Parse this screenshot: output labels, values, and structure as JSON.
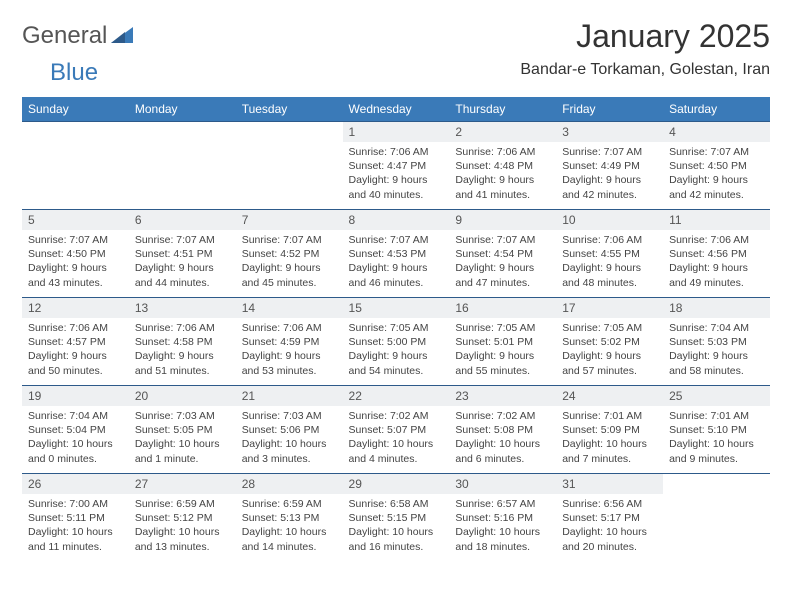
{
  "brand": {
    "general": "General",
    "blue": "Blue"
  },
  "title": "January 2025",
  "location": "Bandar-e Torkaman, Golestan, Iran",
  "colors": {
    "header_bg": "#3a7ab8",
    "header_text": "#ffffff",
    "daynum_bg": "#eef0f2",
    "border": "#2d5a8a",
    "text": "#444444",
    "brand_gray": "#555555",
    "brand_blue": "#3a7ab8"
  },
  "day_headers": [
    "Sunday",
    "Monday",
    "Tuesday",
    "Wednesday",
    "Thursday",
    "Friday",
    "Saturday"
  ],
  "weeks": [
    [
      {
        "n": "",
        "lines": []
      },
      {
        "n": "",
        "lines": []
      },
      {
        "n": "",
        "lines": []
      },
      {
        "n": "1",
        "lines": [
          "Sunrise: 7:06 AM",
          "Sunset: 4:47 PM",
          "Daylight: 9 hours",
          "and 40 minutes."
        ]
      },
      {
        "n": "2",
        "lines": [
          "Sunrise: 7:06 AM",
          "Sunset: 4:48 PM",
          "Daylight: 9 hours",
          "and 41 minutes."
        ]
      },
      {
        "n": "3",
        "lines": [
          "Sunrise: 7:07 AM",
          "Sunset: 4:49 PM",
          "Daylight: 9 hours",
          "and 42 minutes."
        ]
      },
      {
        "n": "4",
        "lines": [
          "Sunrise: 7:07 AM",
          "Sunset: 4:50 PM",
          "Daylight: 9 hours",
          "and 42 minutes."
        ]
      }
    ],
    [
      {
        "n": "5",
        "lines": [
          "Sunrise: 7:07 AM",
          "Sunset: 4:50 PM",
          "Daylight: 9 hours",
          "and 43 minutes."
        ]
      },
      {
        "n": "6",
        "lines": [
          "Sunrise: 7:07 AM",
          "Sunset: 4:51 PM",
          "Daylight: 9 hours",
          "and 44 minutes."
        ]
      },
      {
        "n": "7",
        "lines": [
          "Sunrise: 7:07 AM",
          "Sunset: 4:52 PM",
          "Daylight: 9 hours",
          "and 45 minutes."
        ]
      },
      {
        "n": "8",
        "lines": [
          "Sunrise: 7:07 AM",
          "Sunset: 4:53 PM",
          "Daylight: 9 hours",
          "and 46 minutes."
        ]
      },
      {
        "n": "9",
        "lines": [
          "Sunrise: 7:07 AM",
          "Sunset: 4:54 PM",
          "Daylight: 9 hours",
          "and 47 minutes."
        ]
      },
      {
        "n": "10",
        "lines": [
          "Sunrise: 7:06 AM",
          "Sunset: 4:55 PM",
          "Daylight: 9 hours",
          "and 48 minutes."
        ]
      },
      {
        "n": "11",
        "lines": [
          "Sunrise: 7:06 AM",
          "Sunset: 4:56 PM",
          "Daylight: 9 hours",
          "and 49 minutes."
        ]
      }
    ],
    [
      {
        "n": "12",
        "lines": [
          "Sunrise: 7:06 AM",
          "Sunset: 4:57 PM",
          "Daylight: 9 hours",
          "and 50 minutes."
        ]
      },
      {
        "n": "13",
        "lines": [
          "Sunrise: 7:06 AM",
          "Sunset: 4:58 PM",
          "Daylight: 9 hours",
          "and 51 minutes."
        ]
      },
      {
        "n": "14",
        "lines": [
          "Sunrise: 7:06 AM",
          "Sunset: 4:59 PM",
          "Daylight: 9 hours",
          "and 53 minutes."
        ]
      },
      {
        "n": "15",
        "lines": [
          "Sunrise: 7:05 AM",
          "Sunset: 5:00 PM",
          "Daylight: 9 hours",
          "and 54 minutes."
        ]
      },
      {
        "n": "16",
        "lines": [
          "Sunrise: 7:05 AM",
          "Sunset: 5:01 PM",
          "Daylight: 9 hours",
          "and 55 minutes."
        ]
      },
      {
        "n": "17",
        "lines": [
          "Sunrise: 7:05 AM",
          "Sunset: 5:02 PM",
          "Daylight: 9 hours",
          "and 57 minutes."
        ]
      },
      {
        "n": "18",
        "lines": [
          "Sunrise: 7:04 AM",
          "Sunset: 5:03 PM",
          "Daylight: 9 hours",
          "and 58 minutes."
        ]
      }
    ],
    [
      {
        "n": "19",
        "lines": [
          "Sunrise: 7:04 AM",
          "Sunset: 5:04 PM",
          "Daylight: 10 hours",
          "and 0 minutes."
        ]
      },
      {
        "n": "20",
        "lines": [
          "Sunrise: 7:03 AM",
          "Sunset: 5:05 PM",
          "Daylight: 10 hours",
          "and 1 minute."
        ]
      },
      {
        "n": "21",
        "lines": [
          "Sunrise: 7:03 AM",
          "Sunset: 5:06 PM",
          "Daylight: 10 hours",
          "and 3 minutes."
        ]
      },
      {
        "n": "22",
        "lines": [
          "Sunrise: 7:02 AM",
          "Sunset: 5:07 PM",
          "Daylight: 10 hours",
          "and 4 minutes."
        ]
      },
      {
        "n": "23",
        "lines": [
          "Sunrise: 7:02 AM",
          "Sunset: 5:08 PM",
          "Daylight: 10 hours",
          "and 6 minutes."
        ]
      },
      {
        "n": "24",
        "lines": [
          "Sunrise: 7:01 AM",
          "Sunset: 5:09 PM",
          "Daylight: 10 hours",
          "and 7 minutes."
        ]
      },
      {
        "n": "25",
        "lines": [
          "Sunrise: 7:01 AM",
          "Sunset: 5:10 PM",
          "Daylight: 10 hours",
          "and 9 minutes."
        ]
      }
    ],
    [
      {
        "n": "26",
        "lines": [
          "Sunrise: 7:00 AM",
          "Sunset: 5:11 PM",
          "Daylight: 10 hours",
          "and 11 minutes."
        ]
      },
      {
        "n": "27",
        "lines": [
          "Sunrise: 6:59 AM",
          "Sunset: 5:12 PM",
          "Daylight: 10 hours",
          "and 13 minutes."
        ]
      },
      {
        "n": "28",
        "lines": [
          "Sunrise: 6:59 AM",
          "Sunset: 5:13 PM",
          "Daylight: 10 hours",
          "and 14 minutes."
        ]
      },
      {
        "n": "29",
        "lines": [
          "Sunrise: 6:58 AM",
          "Sunset: 5:15 PM",
          "Daylight: 10 hours",
          "and 16 minutes."
        ]
      },
      {
        "n": "30",
        "lines": [
          "Sunrise: 6:57 AM",
          "Sunset: 5:16 PM",
          "Daylight: 10 hours",
          "and 18 minutes."
        ]
      },
      {
        "n": "31",
        "lines": [
          "Sunrise: 6:56 AM",
          "Sunset: 5:17 PM",
          "Daylight: 10 hours",
          "and 20 minutes."
        ]
      },
      {
        "n": "",
        "lines": []
      }
    ]
  ]
}
